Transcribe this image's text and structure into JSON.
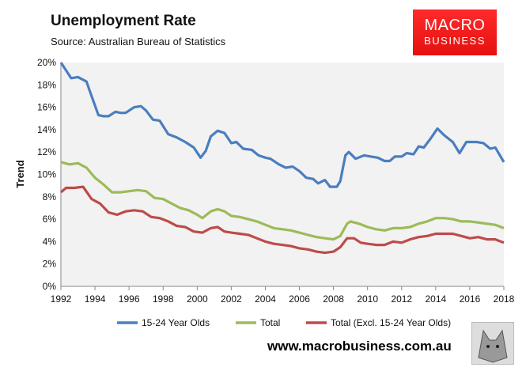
{
  "header": {
    "title": "Unemployment Rate",
    "source": "Source: Australian Bureau of Statistics",
    "logo_line1": "MACRO",
    "logo_line2": "BUSINESS"
  },
  "footer": {
    "url": "www.macrobusiness.com.au"
  },
  "chart_data": {
    "type": "line",
    "title": "Unemployment Rate",
    "xlabel": "",
    "ylabel": "Trend",
    "xlim": [
      1992,
      2018
    ],
    "ylim": [
      0,
      20
    ],
    "xticks": [
      1992,
      1994,
      1996,
      1998,
      2000,
      2002,
      2004,
      2006,
      2008,
      2010,
      2012,
      2014,
      2016,
      2018
    ],
    "yticks": [
      "0%",
      "2%",
      "4%",
      "6%",
      "8%",
      "10%",
      "12%",
      "14%",
      "16%",
      "18%",
      "20%"
    ],
    "grid": false,
    "legend_position": "bottom",
    "series": [
      {
        "name": "15-24 Year Olds",
        "color": "#4a7ebf",
        "x": [
          1992,
          1992.6,
          1993,
          1993.5,
          1993.8,
          1994.2,
          1994.5,
          1994.8,
          1995.2,
          1995.5,
          1995.8,
          1996.3,
          1996.7,
          1997,
          1997.4,
          1997.8,
          1998.3,
          1998.8,
          1999.3,
          1999.8,
          2000.2,
          2000.5,
          2000.8,
          2001.2,
          2001.6,
          2002,
          2002.3,
          2002.7,
          2003.2,
          2003.6,
          2004,
          2004.3,
          2004.8,
          2005.2,
          2005.6,
          2006,
          2006.4,
          2006.8,
          2007.1,
          2007.5,
          2007.8,
          2008.2,
          2008.4,
          2008.7,
          2008.9,
          2009.3,
          2009.8,
          2010.2,
          2010.6,
          2011,
          2011.3,
          2011.6,
          2012,
          2012.3,
          2012.7,
          2013,
          2013.3,
          2013.7,
          2014.1,
          2014.5,
          2015,
          2015.4,
          2015.8,
          2016.4,
          2016.8,
          2017.2,
          2017.5,
          2018
        ],
        "y": [
          20.0,
          18.6,
          18.7,
          18.3,
          17.0,
          15.3,
          15.2,
          15.2,
          15.6,
          15.5,
          15.5,
          16.0,
          16.1,
          15.7,
          14.9,
          14.8,
          13.6,
          13.3,
          12.9,
          12.4,
          11.5,
          12.1,
          13.4,
          13.9,
          13.7,
          12.8,
          12.9,
          12.3,
          12.2,
          11.7,
          11.5,
          11.4,
          10.9,
          10.6,
          10.7,
          10.3,
          9.7,
          9.6,
          9.2,
          9.5,
          8.9,
          8.9,
          9.4,
          11.7,
          12.0,
          11.4,
          11.7,
          11.6,
          11.5,
          11.2,
          11.2,
          11.6,
          11.6,
          11.9,
          11.8,
          12.5,
          12.4,
          13.2,
          14.1,
          13.5,
          12.9,
          11.9,
          12.9,
          12.9,
          12.8,
          12.3,
          12.4,
          11.1
        ]
      },
      {
        "name": "Total",
        "color": "#9bbb59",
        "x": [
          1992,
          1992.5,
          1993,
          1993.5,
          1994,
          1994.5,
          1995,
          1995.5,
          1996,
          1996.5,
          1997,
          1997.5,
          1998,
          1998.5,
          1999,
          1999.5,
          2000,
          2000.3,
          2000.8,
          2001.2,
          2001.6,
          2002,
          2002.5,
          2003,
          2003.5,
          2004,
          2004.5,
          2005,
          2005.5,
          2006,
          2006.5,
          2007,
          2007.5,
          2008,
          2008.4,
          2008.8,
          2009,
          2009.5,
          2010,
          2010.5,
          2011,
          2011.5,
          2012,
          2012.5,
          2013,
          2013.5,
          2014,
          2014.5,
          2015,
          2015.5,
          2016,
          2016.5,
          2017,
          2017.5,
          2018
        ],
        "y": [
          11.1,
          10.9,
          11.0,
          10.6,
          9.7,
          9.1,
          8.4,
          8.4,
          8.5,
          8.6,
          8.5,
          7.9,
          7.8,
          7.4,
          7.0,
          6.8,
          6.4,
          6.1,
          6.7,
          6.9,
          6.7,
          6.3,
          6.2,
          6.0,
          5.8,
          5.5,
          5.2,
          5.1,
          5.0,
          4.8,
          4.6,
          4.4,
          4.3,
          4.2,
          4.5,
          5.6,
          5.8,
          5.6,
          5.3,
          5.1,
          5.0,
          5.2,
          5.2,
          5.3,
          5.6,
          5.8,
          6.1,
          6.1,
          6.0,
          5.8,
          5.8,
          5.7,
          5.6,
          5.5,
          5.2
        ]
      },
      {
        "name": "Total (Excl. 15-24 Year Olds)",
        "color": "#be4b48",
        "x": [
          1992,
          1992.3,
          1992.8,
          1993.3,
          1993.8,
          1994.3,
          1994.8,
          1995.3,
          1995.8,
          1996.3,
          1996.8,
          1997.3,
          1997.8,
          1998.3,
          1998.8,
          1999.3,
          1999.8,
          2000.3,
          2000.8,
          2001.2,
          2001.6,
          2002,
          2002.5,
          2003,
          2003.5,
          2004,
          2004.5,
          2005,
          2005.5,
          2006,
          2006.5,
          2007,
          2007.5,
          2008,
          2008.4,
          2008.8,
          2009.2,
          2009.6,
          2010,
          2010.5,
          2011,
          2011.5,
          2012,
          2012.5,
          2013,
          2013.5,
          2014,
          2014.5,
          2015,
          2015.5,
          2016,
          2016.5,
          2017,
          2017.5,
          2018
        ],
        "y": [
          8.4,
          8.8,
          8.8,
          8.9,
          7.8,
          7.4,
          6.6,
          6.4,
          6.7,
          6.8,
          6.7,
          6.2,
          6.1,
          5.8,
          5.4,
          5.3,
          4.9,
          4.8,
          5.2,
          5.3,
          4.9,
          4.8,
          4.7,
          4.6,
          4.3,
          4.0,
          3.8,
          3.7,
          3.6,
          3.4,
          3.3,
          3.1,
          3.0,
          3.1,
          3.5,
          4.3,
          4.3,
          3.9,
          3.8,
          3.7,
          3.7,
          4.0,
          3.9,
          4.2,
          4.4,
          4.5,
          4.7,
          4.7,
          4.7,
          4.5,
          4.3,
          4.4,
          4.2,
          4.2,
          3.9
        ]
      }
    ]
  }
}
